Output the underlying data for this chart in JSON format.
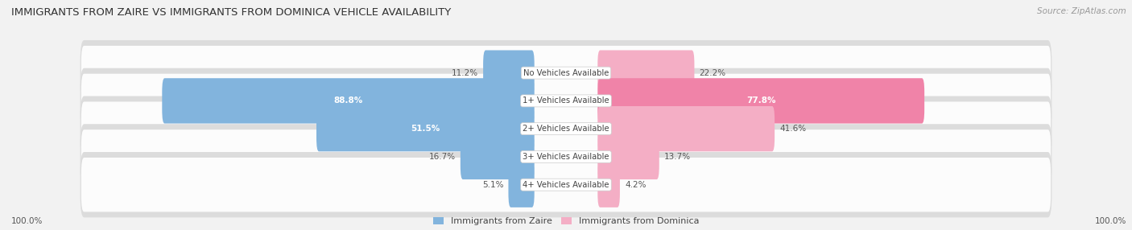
{
  "title": "IMMIGRANTS FROM ZAIRE VS IMMIGRANTS FROM DOMINICA VEHICLE AVAILABILITY",
  "source": "Source: ZipAtlas.com",
  "categories": [
    "No Vehicles Available",
    "1+ Vehicles Available",
    "2+ Vehicles Available",
    "3+ Vehicles Available",
    "4+ Vehicles Available"
  ],
  "zaire_values": [
    11.2,
    88.8,
    51.5,
    16.7,
    5.1
  ],
  "dominica_values": [
    22.2,
    77.8,
    41.6,
    13.7,
    4.2
  ],
  "zaire_color": "#82b4dd",
  "dominica_color": "#f083a8",
  "dominica_color_light": "#f4aec5",
  "bg_color": "#f2f2f2",
  "row_bg_color": "#e8e8e8",
  "total_label": "100.0%",
  "legend_zaire": "Immigrants from Zaire",
  "legend_dominica": "Immigrants from Dominica"
}
